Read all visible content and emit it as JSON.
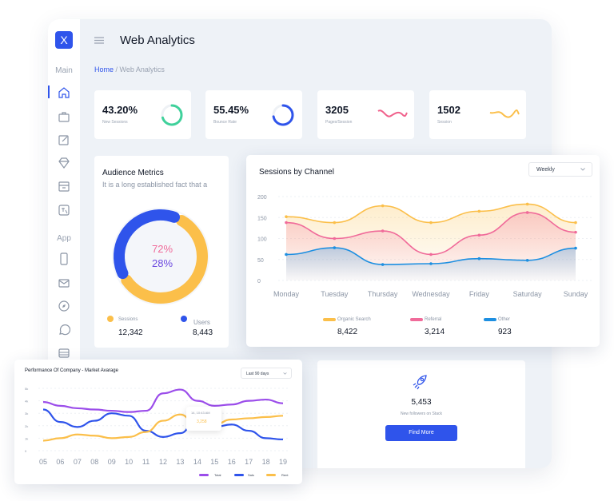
{
  "app": {
    "logo": "X",
    "page_title": "Web Analytics"
  },
  "breadcrumb": {
    "home": "Home",
    "separator": " / ",
    "current": "Web Analytics"
  },
  "sidebar": {
    "sections": [
      "Main",
      "App"
    ],
    "icons": [
      "home-icon",
      "briefcase-icon",
      "edit-icon",
      "diamond-icon",
      "archive-icon",
      "translate-icon",
      "mobile-icon",
      "mail-icon",
      "compass-icon",
      "chat-icon",
      "layers-icon"
    ]
  },
  "stats": [
    {
      "value": "43.20%",
      "label": "New Sessions",
      "ring": 0.7,
      "color": "#3fd19b"
    },
    {
      "value": "55.45%",
      "label": "Bounce Rate",
      "ring": 0.72,
      "color": "#2f54eb"
    },
    {
      "value": "3205",
      "label": "Pages/Session",
      "spark_color": "#f0628c"
    },
    {
      "value": "1502",
      "label": "Session",
      "spark_color": "#fbbf4a"
    }
  ],
  "audience": {
    "title": "Audience Metrics",
    "subtitle": "It is a long established fact that a",
    "pct1": "72%",
    "pct2": "28%",
    "share_sessions": 0.6,
    "share_users": 0.4,
    "legend": [
      {
        "label": "Sessions",
        "value": "12,342",
        "color": "#fbbf4a"
      },
      {
        "label": "Users",
        "value": "8,443",
        "color": "#2f54eb"
      }
    ]
  },
  "channel": {
    "title": "Sessions by Channel",
    "select": "Weekly",
    "legend": [
      {
        "label": "Organic Search",
        "value": "8,422",
        "color": "#fbbf4a"
      },
      {
        "label": "Referral",
        "value": "3,214",
        "color": "#f06b9a"
      },
      {
        "label": "Other",
        "value": "923",
        "color": "#1d8fe1"
      }
    ]
  },
  "followers": {
    "value": "5,453",
    "label": "New followers on Stack",
    "button": "Find More"
  },
  "performance": {
    "title": "Performance Of Company - Market Avarage",
    "select": "Last 90 days",
    "tooltip": {
      "title": "14, 10:43 AM",
      "value": "3,258"
    }
  },
  "chart_data": [
    {
      "type": "area",
      "categories": [
        "Monday",
        "Tuesday",
        "Thursday",
        "Wednesday",
        "Friday",
        "Saturday",
        "Sunday"
      ],
      "ylim": [
        0,
        200
      ],
      "yticks": [
        "200",
        "150",
        "100",
        "50",
        "0"
      ],
      "series": [
        {
          "name": "Organic Search",
          "values": [
            152,
            138,
            178,
            138,
            165,
            182,
            138
          ]
        },
        {
          "name": "Referral",
          "values": [
            138,
            100,
            118,
            62,
            108,
            162,
            115
          ]
        },
        {
          "name": "Other",
          "values": [
            62,
            78,
            38,
            40,
            52,
            48,
            77
          ]
        }
      ]
    },
    {
      "type": "line",
      "categories": [
        "05",
        "06",
        "07",
        "08",
        "09",
        "10",
        "11",
        "12",
        "13",
        "14",
        "15",
        "16",
        "17",
        "18",
        "19"
      ],
      "ylim": [
        0,
        5
      ],
      "yticks": [
        "5k",
        "4k",
        "3k",
        "2k",
        "1k",
        "0"
      ],
      "series": [
        {
          "name": "Total",
          "values": [
            3.9,
            3.6,
            3.4,
            3.3,
            3.2,
            3.1,
            3.2,
            4.6,
            4.9,
            4.0,
            3.6,
            3.7,
            4.0,
            4.1,
            3.8
          ]
        },
        {
          "name": "Sals",
          "values": [
            3.3,
            2.3,
            1.9,
            2.4,
            3.0,
            2.8,
            1.6,
            1.1,
            1.4,
            2.6,
            1.9,
            2.1,
            1.6,
            1.0,
            0.9
          ]
        },
        {
          "name": "Rent",
          "values": [
            0.8,
            1.0,
            1.3,
            1.2,
            1.0,
            1.1,
            1.5,
            2.4,
            2.9,
            2.0,
            2.1,
            2.5,
            2.6,
            2.7,
            2.8
          ]
        }
      ],
      "colors": [
        "#9b4dea",
        "#2f54eb",
        "#fbbf4a"
      ]
    }
  ]
}
